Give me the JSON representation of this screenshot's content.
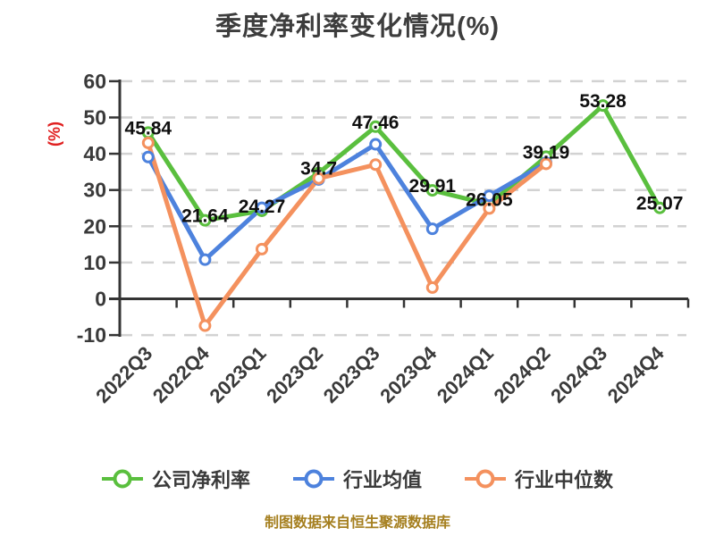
{
  "chart_data": {
    "type": "line",
    "title": "季度净利率变化情况(%)",
    "y_axis_name": "(%)",
    "caption": "制图数据来自恒生聚源数据库",
    "ylim": [
      -10,
      60
    ],
    "ytick_step": 10,
    "yticks": [
      60,
      50,
      40,
      30,
      20,
      10,
      0,
      -10
    ],
    "grid": "dashed",
    "legend_position": "bottom",
    "categories": [
      "2022Q3",
      "2022Q4",
      "2023Q1",
      "2023Q2",
      "2023Q3",
      "2023Q4",
      "2024Q1",
      "2024Q2",
      "2024Q3",
      "2024Q4"
    ],
    "series": [
      {
        "name": "公司净利率",
        "color": "#5abf3e",
        "labeled": true,
        "values": [
          45.84,
          21.64,
          24.27,
          34.7,
          47.46,
          29.91,
          26.05,
          39.19,
          53.28,
          25.07
        ]
      },
      {
        "name": "行业均值",
        "color": "#4d82dd",
        "labeled": false,
        "values": [
          39.1,
          10.8,
          25.1,
          32.9,
          42.6,
          19.3,
          28.4,
          37.5,
          null,
          null
        ]
      },
      {
        "name": "行业中位数",
        "color": "#f4915e",
        "labeled": false,
        "values": [
          43.0,
          -7.4,
          13.7,
          33.2,
          37.0,
          3.1,
          24.9,
          37.2,
          null,
          null
        ]
      }
    ],
    "colors": {
      "axis": "#343434",
      "grid": "#d2d2d2",
      "tick_label": "#3a3a3a",
      "data_label": "#0f0f0f",
      "y_axis_name": "#e02020",
      "marker_fill": "#ffffff"
    }
  }
}
